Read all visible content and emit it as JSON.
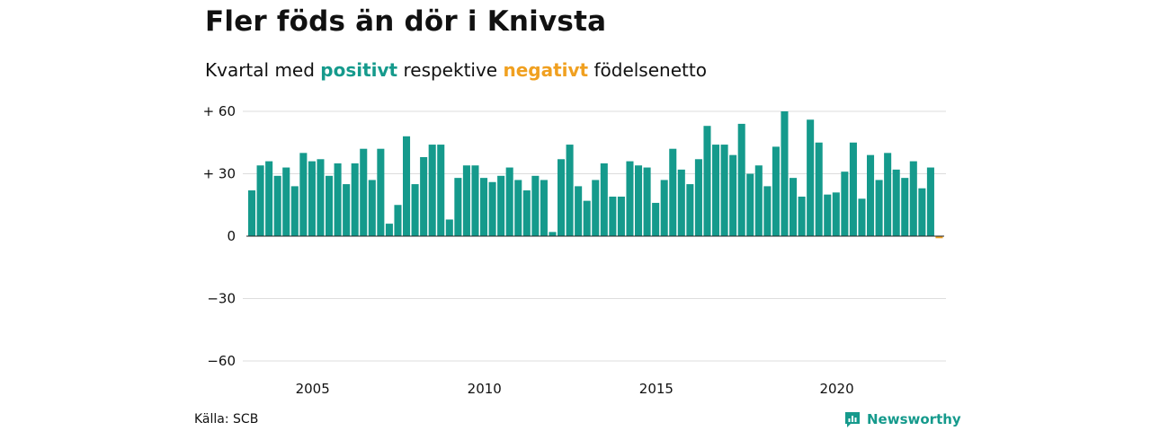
{
  "title": "Fler föds än dör i Knivsta",
  "subtitle": {
    "prefix": "Kvartal med ",
    "positive": "positivt",
    "middle": " respektive ",
    "negative": "negativt",
    "suffix": " födelsenetto"
  },
  "colors": {
    "positive": "#159a8c",
    "negative": "#f0a020",
    "grid": "#dddddd",
    "zero": "#222222"
  },
  "source": "Källa: SCB",
  "brand": "Newsworthy",
  "chart_data": {
    "type": "bar",
    "title": "Fler föds än dör i Knivsta",
    "ylim": [
      -65,
      62
    ],
    "y_ticks": [
      60,
      30,
      0,
      -30,
      -60
    ],
    "y_tick_labels": [
      "+ 60",
      "+ 30",
      "0",
      "−30",
      "−60"
    ],
    "x_tick_labels": [
      {
        "label": "2005",
        "index": 7
      },
      {
        "label": "2010",
        "index": 27
      },
      {
        "label": "2015",
        "index": 47
      },
      {
        "label": "2020",
        "index": 68
      }
    ],
    "grid": true,
    "x_start": "2003 Q1",
    "values": [
      22,
      34,
      36,
      29,
      33,
      24,
      40,
      36,
      37,
      29,
      35,
      25,
      35,
      42,
      27,
      42,
      6,
      15,
      48,
      25,
      38,
      44,
      44,
      8,
      28,
      34,
      34,
      28,
      26,
      29,
      33,
      27,
      22,
      29,
      27,
      2,
      37,
      44,
      24,
      17,
      27,
      35,
      19,
      19,
      36,
      34,
      33,
      16,
      27,
      42,
      32,
      25,
      37,
      53,
      44,
      44,
      39,
      54,
      30,
      34,
      24,
      43,
      60,
      28,
      19,
      56,
      45,
      20,
      21,
      31,
      45,
      18,
      39,
      27,
      40,
      32,
      28,
      36,
      23,
      33,
      -1
    ]
  }
}
